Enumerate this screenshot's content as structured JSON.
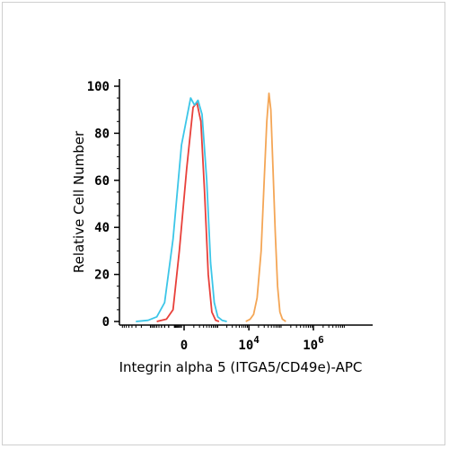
{
  "chart_data": {
    "type": "line",
    "title": "",
    "xlabel": "Integrin alpha 5 (ITGA5/CD49e)-APC",
    "ylabel": "Relative Cell Number",
    "x_scale": "biexponential",
    "ylim": [
      0,
      100
    ],
    "y_ticks": [
      "0",
      "20",
      "40",
      "60",
      "80",
      "100"
    ],
    "x_ticks": [
      {
        "base": "0",
        "exp": ""
      },
      {
        "base": "10",
        "exp": "4"
      },
      {
        "base": "10",
        "exp": "6"
      }
    ],
    "grid": false,
    "series": [
      {
        "color": "#e8403a",
        "points": [
          [
            -600,
            0
          ],
          [
            -250,
            1
          ],
          [
            -120,
            5
          ],
          [
            -40,
            30
          ],
          [
            20,
            65
          ],
          [
            90,
            91
          ],
          [
            150,
            93
          ],
          [
            230,
            85
          ],
          [
            330,
            55
          ],
          [
            460,
            20
          ],
          [
            620,
            4
          ],
          [
            850,
            0.5
          ],
          [
            1100,
            0
          ]
        ]
      },
      {
        "color": "#3cc6e8",
        "points": [
          [
            -3000,
            0
          ],
          [
            -1200,
            0.5
          ],
          [
            -600,
            2
          ],
          [
            -300,
            8
          ],
          [
            -120,
            35
          ],
          [
            -20,
            75
          ],
          [
            60,
            95
          ],
          [
            110,
            92
          ],
          [
            170,
            94
          ],
          [
            260,
            88
          ],
          [
            400,
            60
          ],
          [
            560,
            25
          ],
          [
            760,
            8
          ],
          [
            1000,
            2
          ],
          [
            1400,
            0.5
          ],
          [
            2000,
            0
          ]
        ]
      },
      {
        "color": "#f4a656",
        "points": [
          [
            8000,
            0
          ],
          [
            11000,
            1
          ],
          [
            14000,
            3
          ],
          [
            18000,
            10
          ],
          [
            24000,
            30
          ],
          [
            30000,
            60
          ],
          [
            36000,
            85
          ],
          [
            42000,
            97
          ],
          [
            48000,
            90
          ],
          [
            56000,
            65
          ],
          [
            66000,
            38
          ],
          [
            78000,
            15
          ],
          [
            92000,
            4
          ],
          [
            110000,
            1
          ],
          [
            140000,
            0
          ]
        ]
      }
    ]
  }
}
